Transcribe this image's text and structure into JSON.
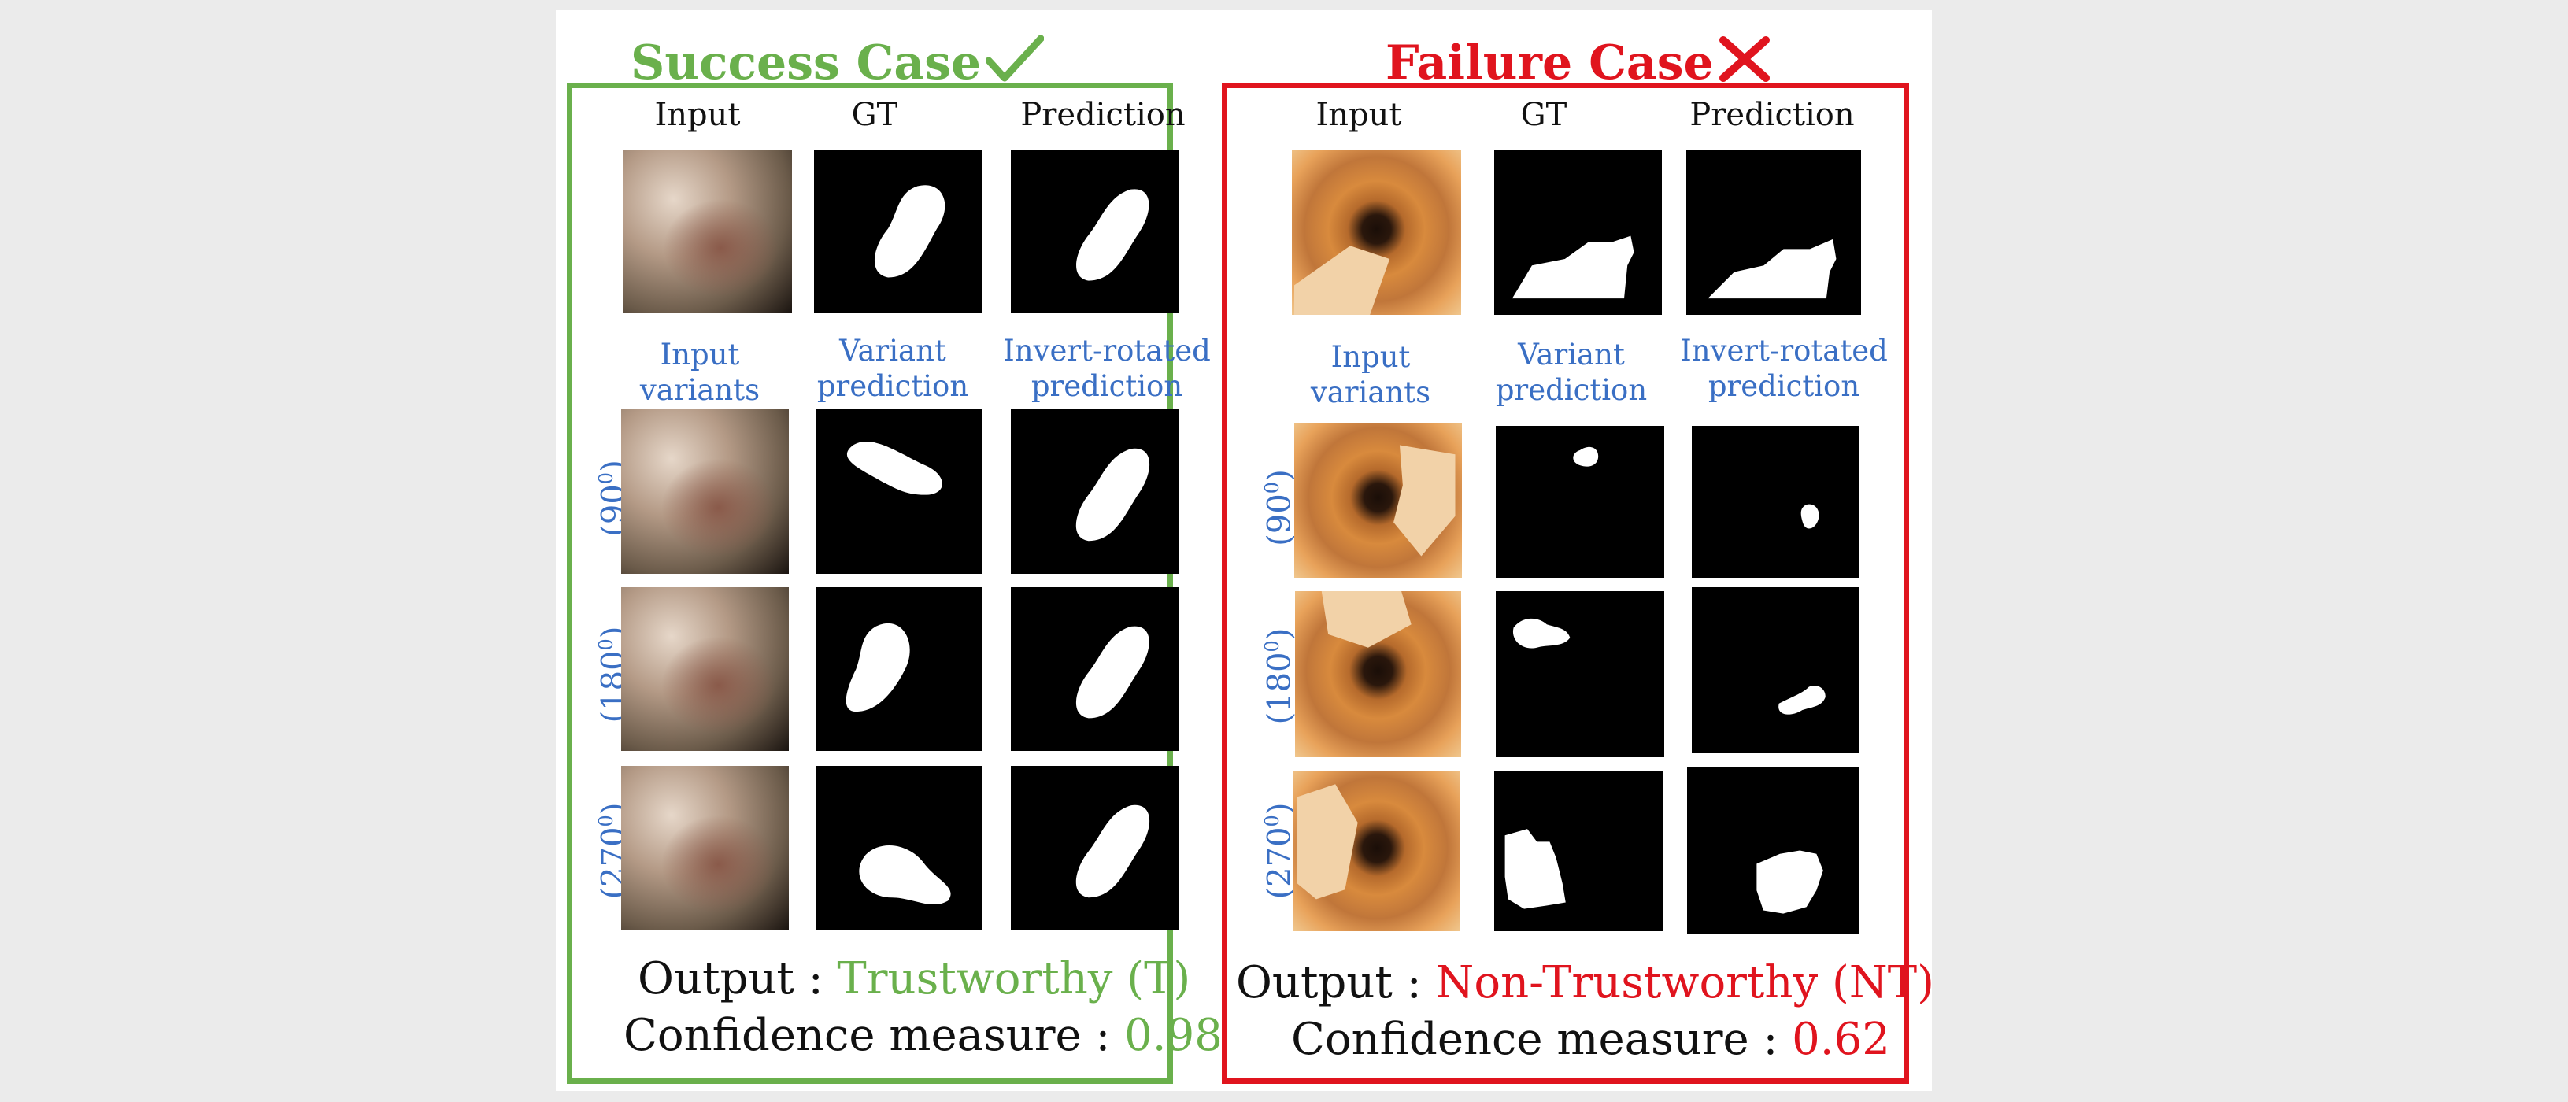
{
  "figure": {
    "success": {
      "title": "Success Case",
      "title_mark": "check-mark",
      "color": "#6ab04c",
      "top_headers": [
        "Input",
        "GT",
        "Prediction"
      ],
      "variant_headers": {
        "input_variants": "Input variants",
        "variant_prediction": "Variant prediction",
        "invert_rotated": "Invert-rotated prediction"
      },
      "rows": [
        {
          "label": "(90",
          "sup": "0",
          "close": ")"
        },
        {
          "label": "(180",
          "sup": "0",
          "close": ")"
        },
        {
          "label": "(270",
          "sup": "0",
          "close": ")"
        }
      ],
      "output_label": "Output : ",
      "output_value": "Trustworthy (T)",
      "confidence_label": "Confidence measure : ",
      "confidence_value": "0.98"
    },
    "failure": {
      "title": "Failure Case",
      "title_mark": "cross-mark",
      "color": "#e0141e",
      "top_headers": [
        "Input",
        "GT",
        "Prediction"
      ],
      "variant_headers": {
        "input_variants": "Input variants",
        "variant_prediction": "Variant prediction",
        "invert_rotated": "Invert-rotated prediction"
      },
      "rows": [
        {
          "label": "(90",
          "sup": "0",
          "close": ")"
        },
        {
          "label": "(180",
          "sup": "0",
          "close": ")"
        },
        {
          "label": "(270",
          "sup": "0",
          "close": ")"
        }
      ],
      "output_label": "Output : ",
      "output_value": "Non-Trustworthy (NT)",
      "confidence_label": "Confidence measure : ",
      "confidence_value": "0.62"
    }
  }
}
